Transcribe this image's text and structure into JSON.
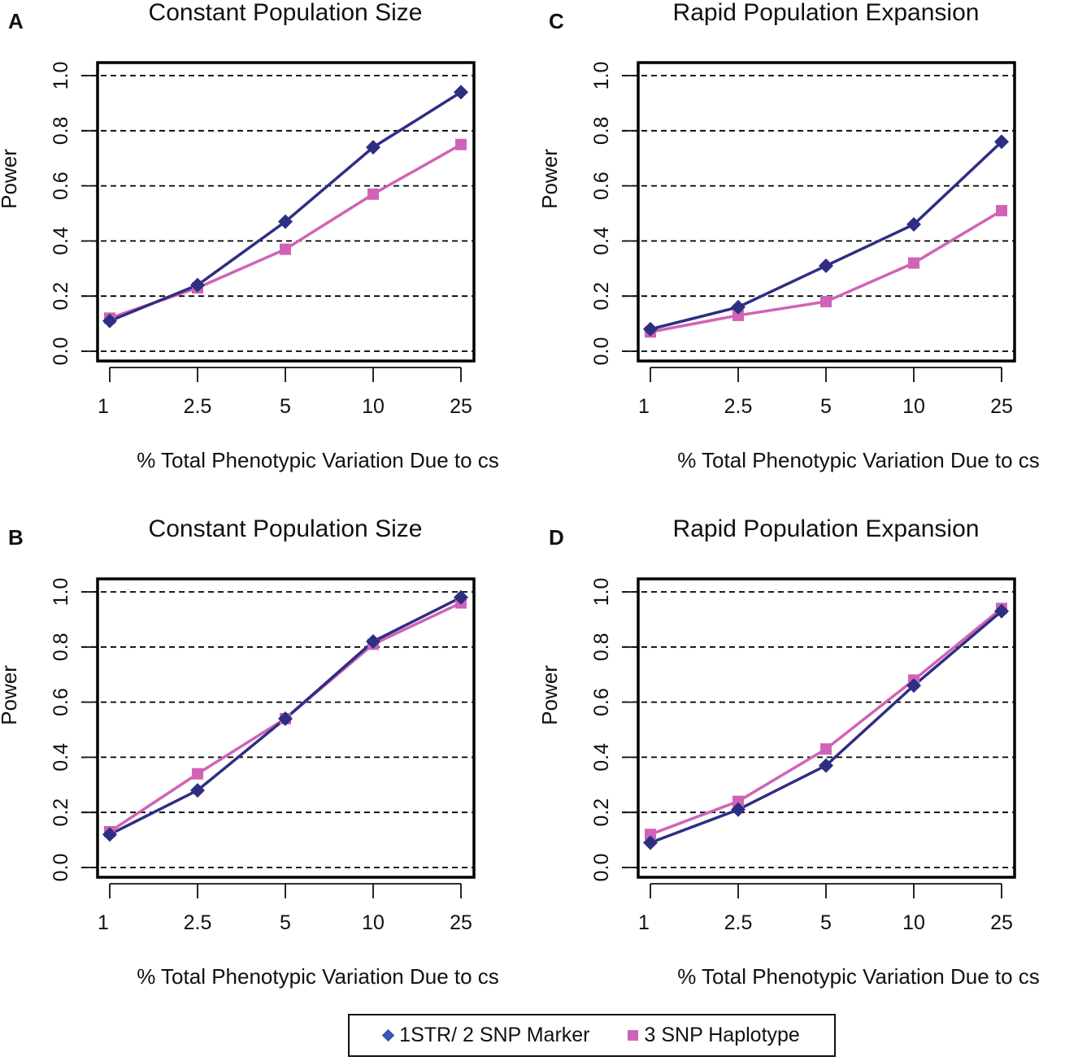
{
  "colors": {
    "series_a": "#2e2e83",
    "series_b": "#d063b6",
    "legend_diamond": "#3b56b0",
    "grid": "#000000"
  },
  "legend": {
    "series_a_label": "1STR/ 2 SNP Marker",
    "series_b_label": "3 SNP Haplotype"
  },
  "chart_data": [
    {
      "panel": "A",
      "type": "line",
      "title": "Constant Population Size",
      "xlabel": "% Total Phenotypic Variation Due to cs",
      "ylabel": "Power",
      "categories": [
        "1",
        "2.5",
        "5",
        "10",
        "25"
      ],
      "yticks": [
        "0.0",
        "0.2",
        "0.4",
        "0.6",
        "0.8",
        "1.0"
      ],
      "ylim": [
        0,
        1
      ],
      "grid": "horizontal-dashed",
      "series": [
        {
          "name": "1STR/ 2 SNP Marker",
          "marker": "diamond",
          "values": [
            0.11,
            0.24,
            0.47,
            0.74,
            0.94
          ]
        },
        {
          "name": "3 SNP Haplotype",
          "marker": "square",
          "values": [
            0.12,
            0.23,
            0.37,
            0.57,
            0.75
          ]
        }
      ]
    },
    {
      "panel": "C",
      "type": "line",
      "title": "Rapid Population Expansion",
      "xlabel": "% Total Phenotypic Variation Due to cs",
      "ylabel": "Power",
      "categories": [
        "1",
        "2.5",
        "5",
        "10",
        "25"
      ],
      "yticks": [
        "0.0",
        "0.2",
        "0.4",
        "0.6",
        "0.8",
        "1.0"
      ],
      "ylim": [
        0,
        1
      ],
      "grid": "horizontal-dashed",
      "series": [
        {
          "name": "1STR/ 2 SNP Marker",
          "marker": "diamond",
          "values": [
            0.08,
            0.16,
            0.31,
            0.46,
            0.76
          ]
        },
        {
          "name": "3 SNP Haplotype",
          "marker": "square",
          "values": [
            0.07,
            0.13,
            0.18,
            0.32,
            0.51
          ]
        }
      ]
    },
    {
      "panel": "B",
      "type": "line",
      "title": "Constant Population Size",
      "xlabel": "% Total Phenotypic Variation Due to cs",
      "ylabel": "Power",
      "categories": [
        "1",
        "2.5",
        "5",
        "10",
        "25"
      ],
      "yticks": [
        "0.0",
        "0.2",
        "0.4",
        "0.6",
        "0.8",
        "1.0"
      ],
      "ylim": [
        0,
        1
      ],
      "grid": "horizontal-dashed",
      "series": [
        {
          "name": "1STR/ 2 SNP Marker",
          "marker": "diamond",
          "values": [
            0.12,
            0.28,
            0.54,
            0.82,
            0.98
          ]
        },
        {
          "name": "3 SNP Haplotype",
          "marker": "square",
          "values": [
            0.13,
            0.34,
            0.54,
            0.81,
            0.96
          ]
        }
      ]
    },
    {
      "panel": "D",
      "type": "line",
      "title": "Rapid Population Expansion",
      "xlabel": "% Total Phenotypic Variation Due to cs",
      "ylabel": "Power",
      "categories": [
        "1",
        "2.5",
        "5",
        "10",
        "25"
      ],
      "yticks": [
        "0.0",
        "0.2",
        "0.4",
        "0.6",
        "0.8",
        "1.0"
      ],
      "ylim": [
        0,
        1
      ],
      "grid": "horizontal-dashed",
      "series": [
        {
          "name": "1STR/ 2 SNP Marker",
          "marker": "diamond",
          "values": [
            0.09,
            0.21,
            0.37,
            0.66,
            0.93
          ]
        },
        {
          "name": "3 SNP Haplotype",
          "marker": "square",
          "values": [
            0.12,
            0.24,
            0.43,
            0.68,
            0.94
          ]
        }
      ]
    }
  ]
}
